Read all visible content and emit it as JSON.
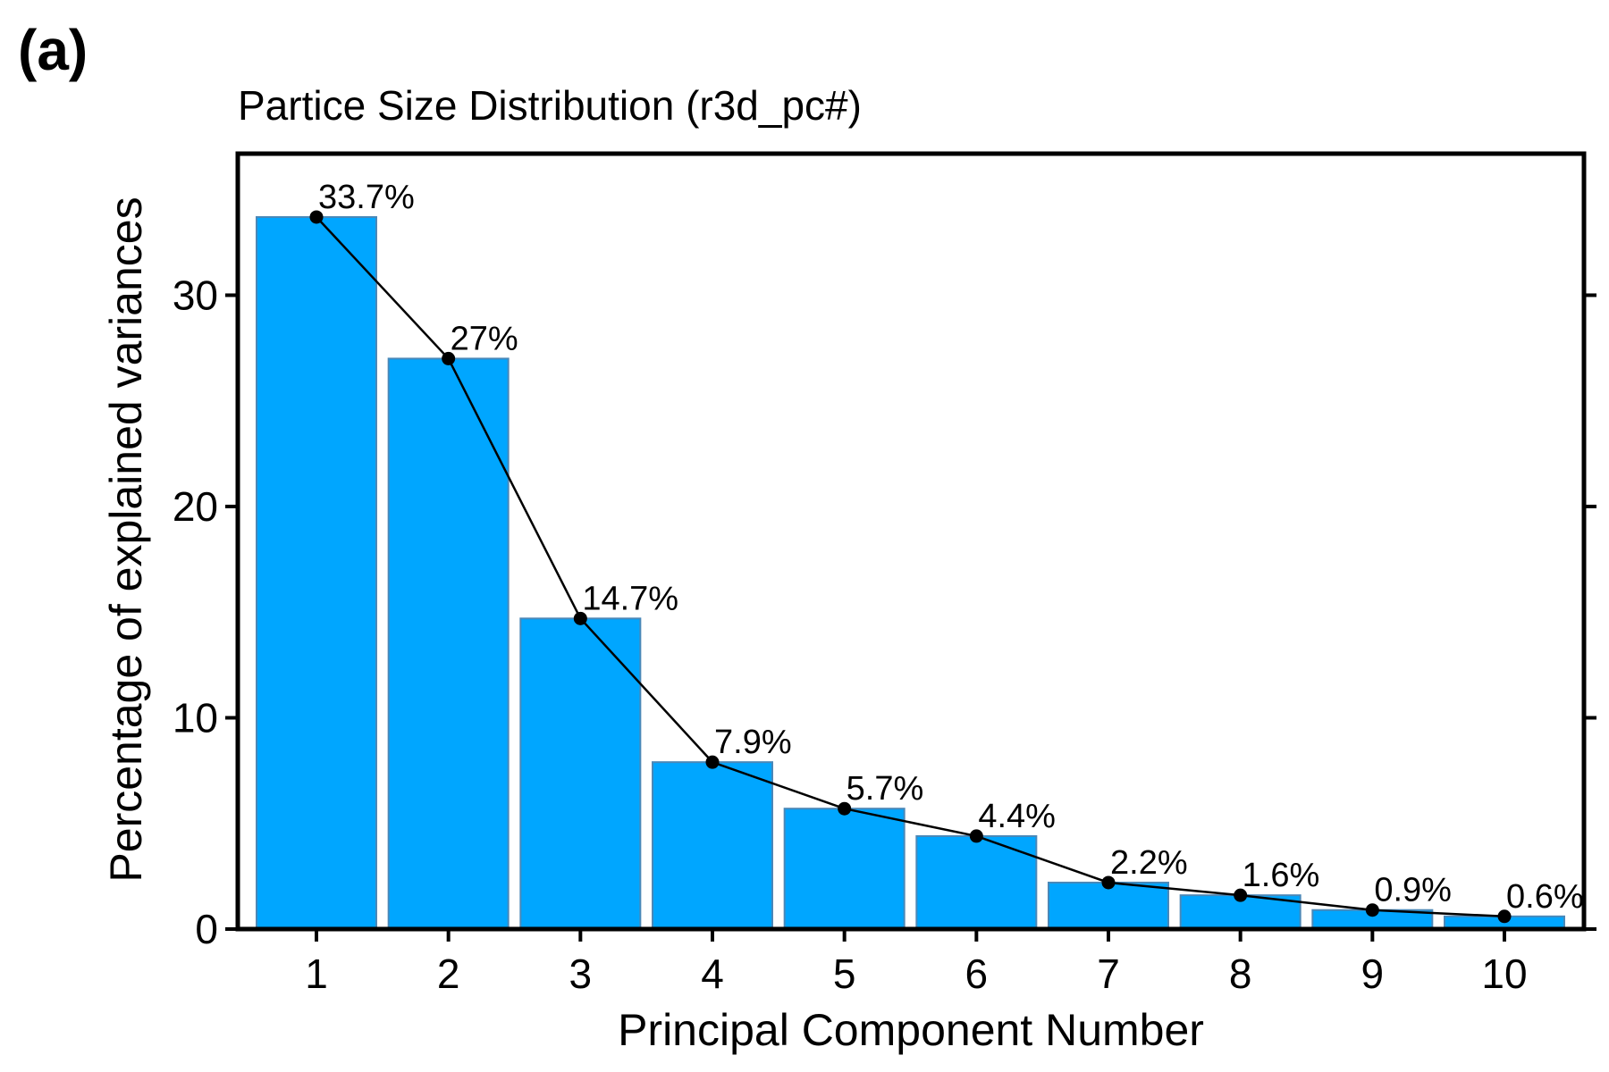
{
  "panel_label": "(a)",
  "chart_data": {
    "type": "bar",
    "title": "Partice Size Distribution (r3d_pc#)",
    "xlabel": "Principal Component Number",
    "ylabel": "Percentage of explained variances",
    "categories": [
      "1",
      "2",
      "3",
      "4",
      "5",
      "6",
      "7",
      "8",
      "9",
      "10"
    ],
    "values": [
      33.7,
      27.0,
      14.7,
      7.9,
      5.7,
      4.4,
      2.2,
      1.6,
      0.9,
      0.6
    ],
    "data_labels": [
      "33.7%",
      "27%",
      "14.7%",
      "7.9%",
      "5.7%",
      "4.4%",
      "2.2%",
      "1.6%",
      "0.9%",
      "0.6%"
    ],
    "yticks": [
      0,
      10,
      20,
      30
    ],
    "ylim": [
      0,
      36.7
    ],
    "overlay": "line-with-points",
    "grid": false,
    "colors": {
      "bar_fill": "#00A6FF",
      "bar_stroke": "#4A88B8",
      "line": "#000000"
    }
  }
}
